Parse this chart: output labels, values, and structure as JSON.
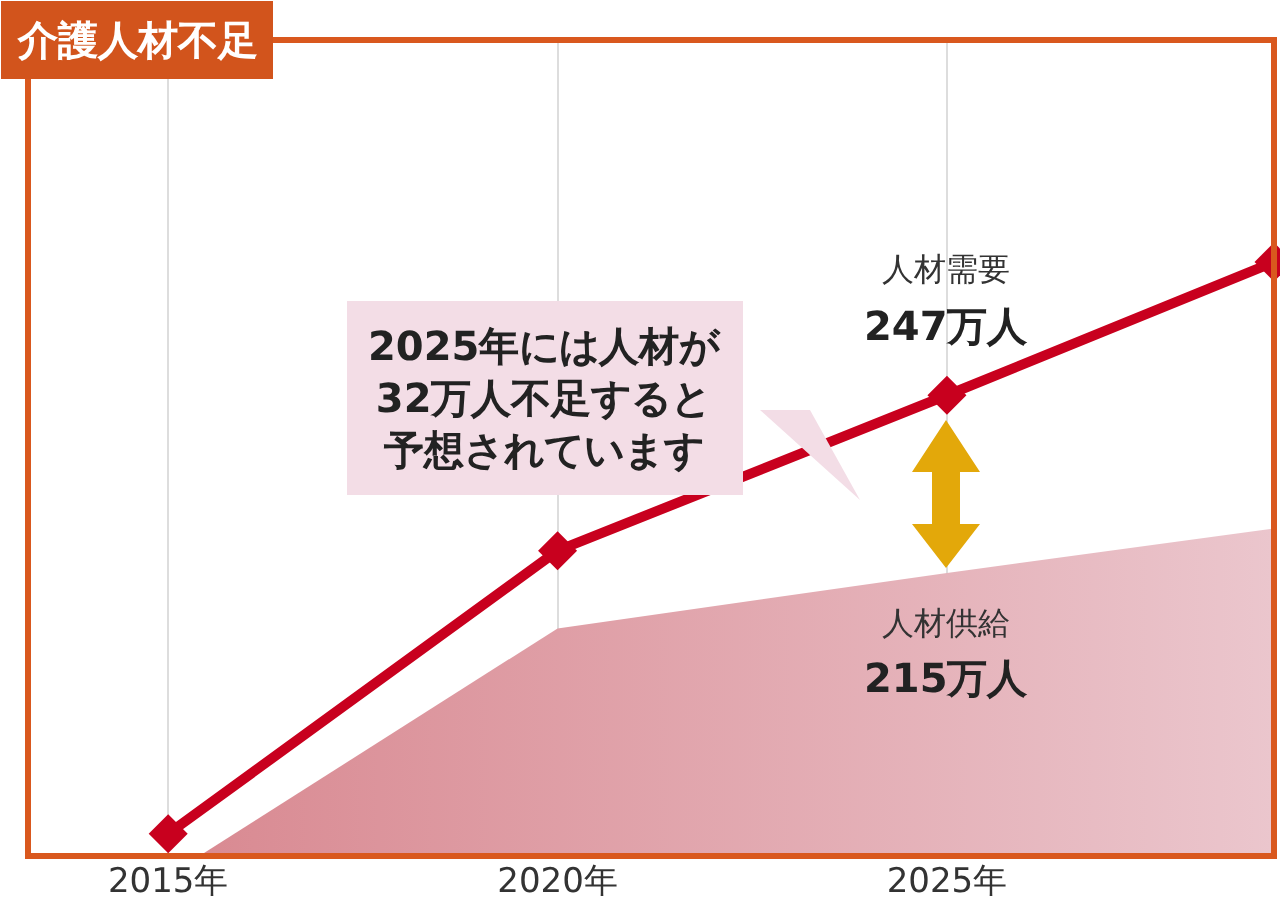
{
  "chart_data": {
    "type": "line",
    "title": "介護人材不足",
    "x": [
      2015,
      2020,
      2025,
      2029.2
    ],
    "xlim": [
      2013.2,
      2029.2
    ],
    "xticks": [
      {
        "value": 2015,
        "label": "2015年"
      },
      {
        "value": 2020,
        "label": "2020年"
      },
      {
        "value": 2025,
        "label": "2025年"
      }
    ],
    "ylim": [
      164,
      311
    ],
    "tick_labels": "x",
    "grid": "x",
    "legend": false,
    "series": [
      {
        "name": "人材供給",
        "type": "area",
        "color": "#d98a92",
        "x": [
          2015.4,
          2020,
          2025,
          2029.2
        ],
        "values": [
          164,
          205,
          215,
          223
        ],
        "value_labels": [
          null,
          null,
          "215万人",
          null
        ]
      },
      {
        "name": "人材需要",
        "color": "#c8001e",
        "marker": "diamond",
        "values": [
          168,
          219,
          247,
          271
        ],
        "value_labels": [
          null,
          null,
          "247万人",
          null
        ]
      }
    ],
    "annotations": [
      "2025年には人材が32万人不足すると予想されています"
    ]
  }
}
